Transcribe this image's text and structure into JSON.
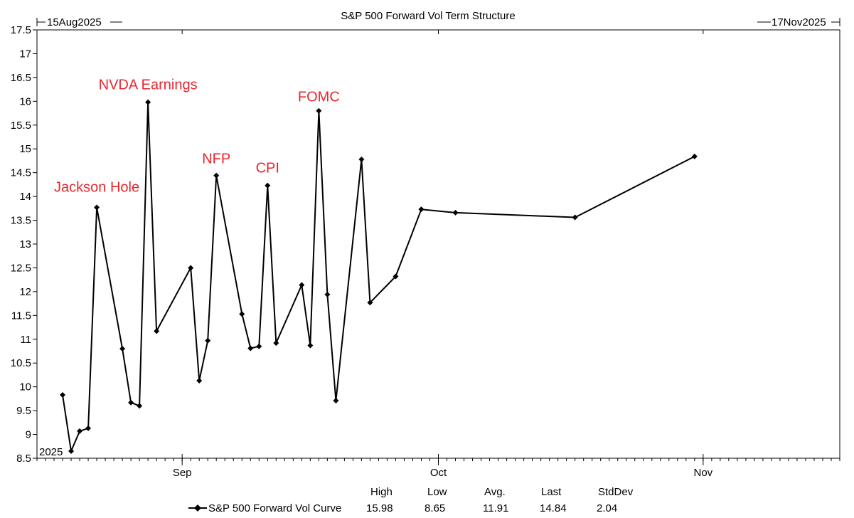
{
  "chart_data": {
    "type": "line",
    "title": "S&P 500 Forward Vol Term Structure",
    "start_date_label": "15Aug2025",
    "end_date_label": "17Nov2025",
    "year_label": "2025",
    "x_range": [
      "2025-08-15",
      "2025-11-17"
    ],
    "ylim": [
      8.5,
      17.5
    ],
    "y_ticks": [
      "8.5",
      "9",
      "9.5",
      "10",
      "10.5",
      "11",
      "11.5",
      "12",
      "12.5",
      "13",
      "13.5",
      "14",
      "14.5",
      "15",
      "15.5",
      "16",
      "16.5",
      "17",
      "17.5"
    ],
    "x_ticks": [
      {
        "date": "2025-09-01",
        "label": "Sep"
      },
      {
        "date": "2025-10-01",
        "label": "Oct"
      },
      {
        "date": "2025-11-01",
        "label": "Nov"
      }
    ],
    "grid": false,
    "series": [
      {
        "name": "S&P 500 Forward Vol Curve",
        "color": "#000000",
        "marker": "diamond",
        "x": [
          "2025-08-18",
          "2025-08-19",
          "2025-08-20",
          "2025-08-21",
          "2025-08-22",
          "2025-08-25",
          "2025-08-26",
          "2025-08-27",
          "2025-08-28",
          "2025-08-29",
          "2025-09-02",
          "2025-09-03",
          "2025-09-04",
          "2025-09-05",
          "2025-09-08",
          "2025-09-09",
          "2025-09-10",
          "2025-09-11",
          "2025-09-12",
          "2025-09-15",
          "2025-09-16",
          "2025-09-17",
          "2025-09-18",
          "2025-09-19",
          "2025-09-22",
          "2025-09-23",
          "2025-09-26",
          "2025-09-29",
          "2025-10-03",
          "2025-10-17",
          "2025-10-31"
        ],
        "values": [
          9.83,
          8.65,
          9.07,
          9.13,
          13.77,
          10.8,
          9.67,
          9.6,
          15.98,
          11.17,
          12.5,
          10.13,
          10.97,
          14.44,
          11.53,
          10.81,
          10.85,
          14.23,
          10.92,
          12.14,
          10.87,
          15.8,
          11.94,
          9.71,
          14.78,
          11.77,
          12.32,
          13.73,
          13.66,
          13.56,
          14.84
        ]
      }
    ],
    "annotations": [
      {
        "text": "Jackson Hole",
        "date": "2025-08-22",
        "value": 14.1
      },
      {
        "text": "NVDA Earnings",
        "date": "2025-08-28",
        "value": 16.25
      },
      {
        "text": "NFP",
        "date": "2025-09-05",
        "value": 14.7
      },
      {
        "text": "CPI",
        "date": "2025-09-11",
        "value": 14.5
      },
      {
        "text": "FOMC",
        "date": "2025-09-17",
        "value": 16.0
      }
    ],
    "stats": {
      "headers": [
        "High",
        "Low",
        "Avg.",
        "Last",
        "StdDev"
      ],
      "series_name": "S&P 500 Forward Vol Curve",
      "values": [
        "15.98",
        "8.65",
        "11.91",
        "14.84",
        "2.04"
      ]
    }
  }
}
